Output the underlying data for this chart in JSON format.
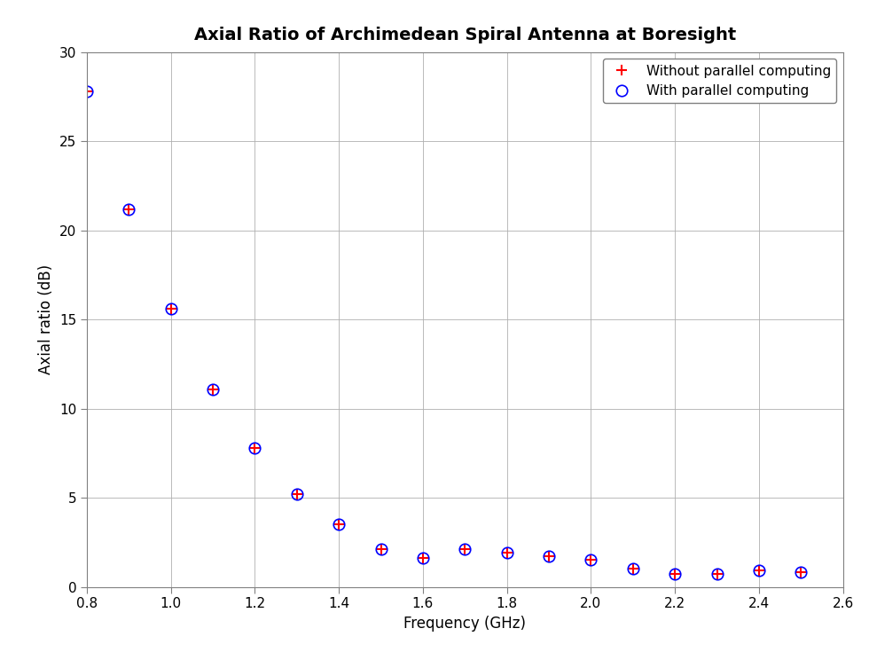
{
  "title": "Axial Ratio of Archimedean Spiral Antenna at Boresight",
  "xlabel": "Frequency (GHz)",
  "ylabel": "Axial ratio (dB)",
  "xlim": [
    0.8,
    2.6
  ],
  "ylim": [
    0,
    30
  ],
  "xticks": [
    0.8,
    1.0,
    1.2,
    1.4,
    1.6,
    1.8,
    2.0,
    2.2,
    2.4,
    2.6
  ],
  "yticks": [
    0,
    5,
    10,
    15,
    20,
    25,
    30
  ],
  "freq": [
    0.8,
    0.9,
    1.0,
    1.1,
    1.2,
    1.3,
    1.4,
    1.5,
    1.6,
    1.7,
    1.8,
    1.9,
    2.0,
    2.1,
    2.2,
    2.3,
    2.4,
    2.5
  ],
  "values": [
    27.8,
    21.2,
    15.6,
    11.1,
    7.8,
    5.2,
    3.5,
    2.1,
    1.6,
    2.1,
    1.9,
    1.7,
    1.5,
    1.0,
    0.7,
    0.7,
    0.9,
    0.8
  ],
  "color_cross": "red",
  "color_circle": "blue",
  "legend_labels": [
    "Without parallel computing",
    "With parallel computing"
  ],
  "background_color": "#ffffff",
  "grid_color": "#b0b0b0",
  "axes_edge_color": "#808080",
  "title_fontsize": 14,
  "label_fontsize": 12,
  "tick_fontsize": 11,
  "marker_size_cross": 8,
  "marker_size_circle": 9,
  "legend_fontsize": 11
}
